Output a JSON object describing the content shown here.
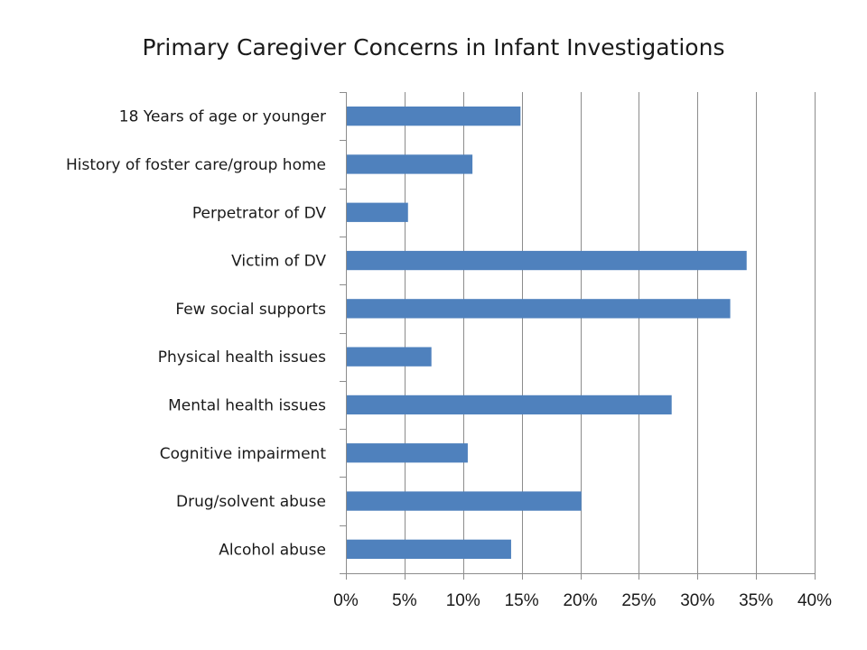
{
  "chart_data": {
    "type": "bar",
    "orientation": "horizontal",
    "title": "Primary Caregiver Concerns in Infant Investigations",
    "xlabel": "",
    "ylabel": "",
    "categories": [
      "18 Years of age or younger",
      "History of foster care/group home",
      "Perpetrator of DV",
      "Victim of DV",
      "Few social supports",
      "Physical health issues",
      "Mental health issues",
      "Cognitive impairment",
      "Drug/solvent abuse",
      "Alcohol abuse"
    ],
    "values": [
      14.9,
      10.8,
      5.3,
      34.2,
      32.8,
      7.3,
      27.8,
      10.4,
      20.1,
      14.1
    ],
    "xlim": [
      0,
      40
    ],
    "x_ticks": [
      0,
      5,
      10,
      15,
      20,
      25,
      30,
      35,
      40
    ],
    "x_tick_labels": [
      "0%",
      "5%",
      "10%",
      "15%",
      "20%",
      "25%",
      "30%",
      "35%",
      "40%"
    ],
    "bar_color": "#4f81bd",
    "grid": true,
    "legend": "none"
  }
}
